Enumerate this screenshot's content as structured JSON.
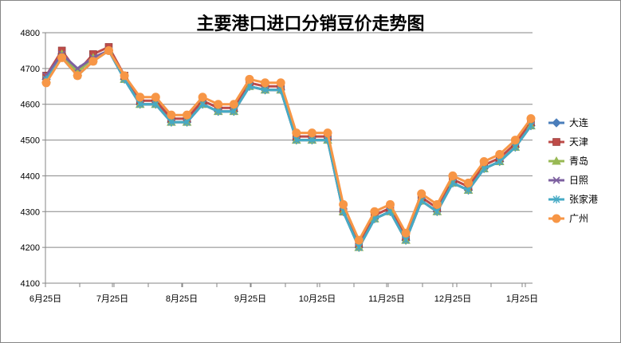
{
  "chart_data": {
    "type": "line",
    "title": "主要港口进口分销豆价走势图",
    "xlabel": "",
    "ylabel": "",
    "ylim": [
      4100,
      4800
    ],
    "yticks": [
      4100,
      4200,
      4300,
      4400,
      4500,
      4600,
      4700,
      4800
    ],
    "x_tick_labels": [
      "6月25日",
      "7月25日",
      "8月25日",
      "9月25日",
      "10月25日",
      "11月25日",
      "12月25日",
      "1月25日"
    ],
    "grid": "horizontal",
    "legend_position": "right",
    "series": [
      {
        "name": "大连",
        "color": "#4A7EBB",
        "marker": "diamond",
        "values": [
          4670,
          4740,
          4690,
          4730,
          4750,
          4670,
          4600,
          4600,
          4550,
          4550,
          4600,
          4580,
          4580,
          4650,
          4640,
          4640,
          4500,
          4500,
          4500,
          4300,
          4200,
          4280,
          4300,
          4220,
          4330,
          4300,
          4380,
          4360,
          4420,
          4440,
          4480,
          4540
        ]
      },
      {
        "name": "天津",
        "color": "#BE4B48",
        "marker": "square",
        "values": [
          4680,
          4750,
          4690,
          4740,
          4760,
          4680,
          4610,
          4610,
          4560,
          4560,
          4610,
          4590,
          4590,
          4660,
          4650,
          4650,
          4510,
          4510,
          4510,
          4300,
          4210,
          4290,
          4310,
          4230,
          4340,
          4310,
          4390,
          4370,
          4430,
          4450,
          4490,
          4550
        ]
      },
      {
        "name": "青岛",
        "color": "#98B954",
        "marker": "triangle",
        "values": [
          4670,
          4740,
          4690,
          4730,
          4750,
          4670,
          4600,
          4600,
          4550,
          4550,
          4600,
          4580,
          4580,
          4650,
          4640,
          4640,
          4500,
          4500,
          4500,
          4300,
          4200,
          4280,
          4300,
          4220,
          4330,
          4300,
          4380,
          4360,
          4420,
          4440,
          4480,
          4540
        ]
      },
      {
        "name": "日照",
        "color": "#7D60A0",
        "marker": "x",
        "values": [
          4680,
          4740,
          4700,
          4730,
          4750,
          4670,
          4600,
          4600,
          4550,
          4550,
          4600,
          4580,
          4580,
          4650,
          4640,
          4640,
          4500,
          4500,
          4500,
          4300,
          4200,
          4280,
          4300,
          4220,
          4330,
          4300,
          4380,
          4360,
          4420,
          4440,
          4480,
          4540
        ]
      },
      {
        "name": "张家港",
        "color": "#46AAC5",
        "marker": "star",
        "values": [
          4670,
          4730,
          4680,
          4720,
          4750,
          4670,
          4600,
          4600,
          4550,
          4550,
          4600,
          4580,
          4580,
          4650,
          4640,
          4640,
          4500,
          4500,
          4500,
          4300,
          4200,
          4280,
          4300,
          4220,
          4330,
          4300,
          4380,
          4360,
          4420,
          4440,
          4480,
          4540
        ]
      },
      {
        "name": "广州",
        "color": "#F79646",
        "marker": "circle",
        "values": [
          4660,
          4730,
          4680,
          4720,
          4750,
          4680,
          4620,
          4620,
          4570,
          4570,
          4620,
          4600,
          4600,
          4670,
          4660,
          4660,
          4520,
          4520,
          4520,
          4320,
          4220,
          4300,
          4320,
          4240,
          4350,
          4320,
          4400,
          4380,
          4440,
          4460,
          4500,
          4560
        ]
      }
    ]
  }
}
